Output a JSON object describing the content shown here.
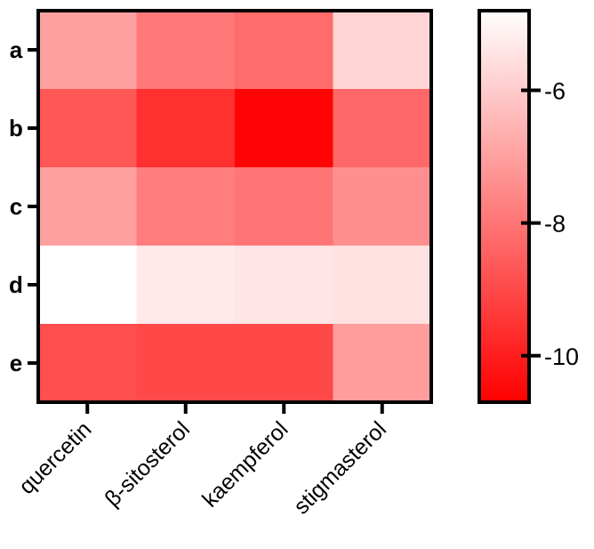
{
  "chart_data": {
    "type": "heatmap",
    "rows": [
      "a",
      "b",
      "c",
      "d",
      "e"
    ],
    "columns": [
      "quercetin",
      "β-sitosterol",
      "kaempferol",
      "stigmasterol"
    ],
    "values": [
      [
        -7.0,
        -7.9,
        -8.2,
        -5.8
      ],
      [
        -8.7,
        -9.6,
        -10.6,
        -8.3
      ],
      [
        -7.0,
        -7.8,
        -8.0,
        -7.4
      ],
      [
        -4.8,
        -5.3,
        -5.4,
        -5.5
      ],
      [
        -8.9,
        -9.0,
        -9.0,
        -7.1
      ]
    ],
    "colorbar": {
      "min": -10.7,
      "max": -4.8,
      "ticks": [
        -6,
        -8,
        -10
      ],
      "tick_labels": [
        "-6",
        "-8",
        "-10"
      ],
      "color_low": "#ff0000",
      "color_high": "#ffffff"
    },
    "title": "",
    "xlabel": "",
    "ylabel": ""
  }
}
